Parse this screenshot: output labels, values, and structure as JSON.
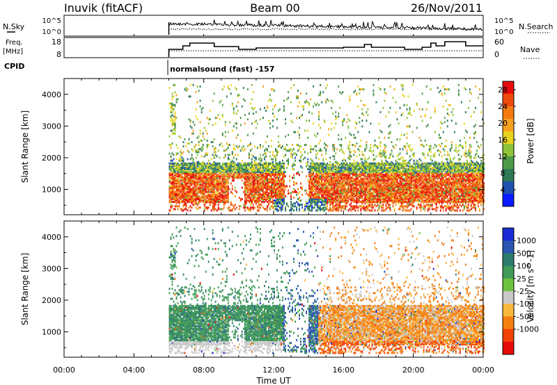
{
  "header": {
    "station": "Inuvik (fitACF)",
    "beam": "Beam 00",
    "date": "26/Nov/2011"
  },
  "panels": {
    "nsky": {
      "label": "N.Sky",
      "ticks_left": [
        "10^5",
        "10^0"
      ],
      "ticks_right": [
        "10^5",
        "10^0"
      ],
      "right_label": "N.Search"
    },
    "freq": {
      "label_line1": "Freq.",
      "label_line2": "[MHz]",
      "ticks_left": [
        "18",
        "8"
      ],
      "ticks_right": [
        "60",
        "0"
      ],
      "right_label": "Nave"
    },
    "cpid": {
      "label": "CPID",
      "text": "normalsound (fast) -157"
    }
  },
  "colors": {
    "power": [
      "#0a1cff",
      "#1f4fb0",
      "#2f7a55",
      "#4f9a48",
      "#8dc43a",
      "#e8d21c",
      "#f6a020",
      "#f47a10",
      "#ee4a0c",
      "#e60b0b"
    ],
    "velocity": [
      "#e60b0b",
      "#f14208",
      "#f57e10",
      "#f9b83c",
      "#c8c8c8",
      "#6cc23e",
      "#3e9a56",
      "#2d7a6d",
      "#2a55b0",
      "#1a2ad4"
    ]
  },
  "chart_data": [
    {
      "type": "heatmap",
      "name": "power",
      "xlabel": "",
      "ylabel": "Slant Range [km]",
      "x_ticks": [
        "00:00",
        "04:00",
        "08:00",
        "12:00",
        "16:00",
        "20:00",
        "00:00"
      ],
      "y_ticks": [
        "1000",
        "2000",
        "3000",
        "4000"
      ],
      "ylim_km": [
        200,
        4500
      ],
      "data_start_hour": 6.0,
      "colorbar": {
        "label": "Power [dB]",
        "ticks": [
          "4",
          "8",
          "12",
          "16",
          "20",
          "24",
          "28"
        ],
        "range": [
          0,
          30
        ]
      }
    },
    {
      "type": "heatmap",
      "name": "velocity",
      "xlabel": "Time UT",
      "ylabel": "Slant Range [km]",
      "x_ticks": [
        "00:00",
        "04:00",
        "08:00",
        "12:00",
        "16:00",
        "20:00",
        "00:00"
      ],
      "y_ticks": [
        "1000",
        "2000",
        "3000",
        "4000"
      ],
      "ylim_km": [
        200,
        4500
      ],
      "data_start_hour": 6.0,
      "colorbar": {
        "label": "Velocity [m s^-1]",
        "ticks": [
          "1000",
          "500",
          "100",
          "25",
          "-25",
          "-100",
          "-500",
          "-1000"
        ]
      }
    }
  ]
}
